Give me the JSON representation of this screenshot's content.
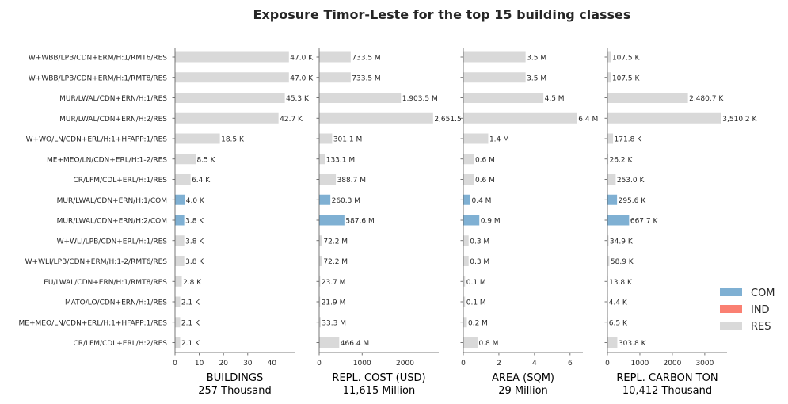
{
  "chart_data": {
    "type": "bar",
    "title": "Exposure Timor-Leste for the top 15 building classes",
    "categories": [
      "W+WBB/LPB/CDN+ERM/H:1/RMT6/RES",
      "W+WBB/LPB/CDN+ERM/H:1/RMT8/RES",
      "MUR/LWAL/CDN+ERN/H:1/RES",
      "MUR/LWAL/CDN+ERN/H:2/RES",
      "W+WO/LN/CDN+ERL/H:1+HFAPP:1/RES",
      "ME+MEO/LN/CDN+ERL/H:1-2/RES",
      "CR/LFM/CDL+ERL/H:1/RES",
      "MUR/LWAL/CDN+ERN/H:1/COM",
      "MUR/LWAL/CDN+ERN/H:2/COM",
      "W+WLI/LPB/CDN+ERL/H:1/RES",
      "W+WLI/LPB/CDN+ERM/H:1-2/RMT6/RES",
      "EU/LWAL/CDN+ERN/H:1/RMT8/RES",
      "MATO/LO/CDN+ERN/H:1/RES",
      "ME+MEO/LN/CDN+ERL/H:1+HFAPP:1/RES",
      "CR/LFM/CDL+ERL/H:2/RES"
    ],
    "occupancy": [
      "RES",
      "RES",
      "RES",
      "RES",
      "RES",
      "RES",
      "RES",
      "COM",
      "COM",
      "RES",
      "RES",
      "RES",
      "RES",
      "RES",
      "RES"
    ],
    "legend": {
      "position": "right",
      "entries": [
        {
          "label": "COM",
          "color": "#7fb0d3"
        },
        {
          "label": "IND",
          "color": "#fa8072"
        },
        {
          "label": "RES",
          "color": "#d9d9d9"
        }
      ]
    },
    "panels": [
      {
        "xlabel": "BUILDINGS",
        "subtitle": "257 Thousand",
        "values": [
          47.0,
          47.0,
          45.3,
          42.7,
          18.5,
          8.5,
          6.4,
          4.0,
          3.8,
          3.8,
          3.8,
          2.8,
          2.1,
          2.1,
          2.1
        ],
        "labels": [
          "47.0 K",
          "47.0 K",
          "45.3 K",
          "42.7 K",
          "18.5 K",
          "8.5 K",
          "6.4 K",
          "4.0 K",
          "3.8 K",
          "3.8 K",
          "3.8 K",
          "2.8 K",
          "2.1 K",
          "2.1 K",
          "2.1 K"
        ],
        "xlim": [
          0,
          49.35
        ],
        "ticks": [
          0,
          10,
          20,
          30,
          40
        ],
        "tick_labels": [
          "0",
          "10",
          "20",
          "30",
          "40"
        ]
      },
      {
        "xlabel": "REPL. COST (USD)",
        "subtitle": "11,615 Million",
        "values": [
          733.5,
          733.5,
          1903.5,
          2651.5,
          301.1,
          133.1,
          388.7,
          260.3,
          587.6,
          72.2,
          72.2,
          23.7,
          21.9,
          33.3,
          466.4
        ],
        "labels": [
          "733.5 M",
          "733.5 M",
          "1,903.5 M",
          "2,651.5 M",
          "301.1 M",
          "133.1 M",
          "388.7 M",
          "260.3 M",
          "587.6 M",
          "72.2 M",
          "72.2 M",
          "23.7 M",
          "21.9 M",
          "33.3 M",
          "466.4 M"
        ],
        "xlim": [
          0,
          2784
        ],
        "ticks": [
          0,
          1000,
          2000
        ],
        "tick_labels": [
          "0",
          "1000",
          "2000"
        ]
      },
      {
        "xlabel": "AREA (SQM)",
        "subtitle": "29 Million",
        "values": [
          3.5,
          3.5,
          4.5,
          6.4,
          1.4,
          0.6,
          0.6,
          0.4,
          0.9,
          0.3,
          0.3,
          0.1,
          0.1,
          0.2,
          0.8
        ],
        "labels": [
          "3.5 M",
          "3.5 M",
          "4.5 M",
          "6.4 M",
          "1.4 M",
          "0.6 M",
          "0.6 M",
          "0.4 M",
          "0.9 M",
          "0.3 M",
          "0.3 M",
          "0.1 M",
          "0.1 M",
          "0.2 M",
          "0.8 M"
        ],
        "xlim": [
          0,
          6.72
        ],
        "ticks": [
          0,
          2,
          4,
          6
        ],
        "tick_labels": [
          "0",
          "2",
          "4",
          "6"
        ]
      },
      {
        "xlabel": "REPL. CARBON TON",
        "subtitle": "10,412 Thousand",
        "values": [
          107.5,
          107.5,
          2480.7,
          3510.2,
          171.8,
          26.2,
          253.0,
          295.6,
          667.7,
          34.9,
          58.9,
          13.8,
          4.4,
          6.5,
          303.8
        ],
        "labels": [
          "107.5 K",
          "107.5 K",
          "2,480.7 K",
          "3,510.2 K",
          "171.8 K",
          "26.2 K",
          "253.0 K",
          "295.6 K",
          "667.7 K",
          "34.9 K",
          "58.9 K",
          "13.8 K",
          "4.4 K",
          "6.5 K",
          "303.8 K"
        ],
        "xlim": [
          0,
          3686
        ],
        "ticks": [
          0,
          1000,
          2000,
          3000
        ],
        "tick_labels": [
          "0",
          "1000",
          "2000",
          "3000"
        ]
      }
    ]
  }
}
